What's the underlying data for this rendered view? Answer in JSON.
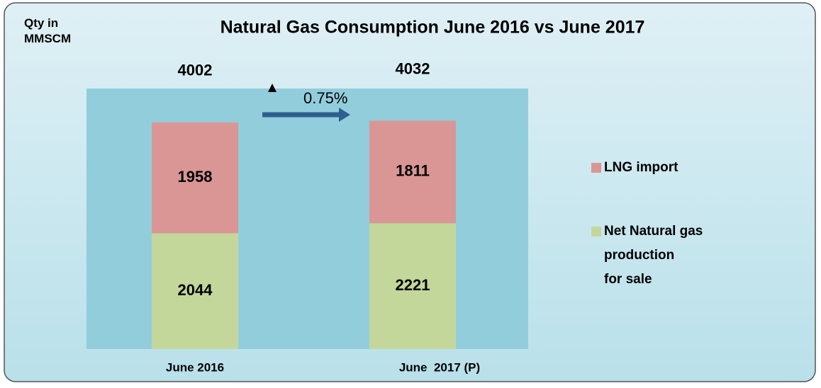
{
  "chart_data": {
    "type": "stacked_bar",
    "title": "Natural Gas Consumption June 2016 vs June 2017",
    "y_axis_label": "Qty in\nMMSCM",
    "categories": [
      "June 2016",
      "June  2017 (P)"
    ],
    "series": [
      {
        "name": "Net Natural gas\nproduction\nfor sale",
        "color": "#c4d79b",
        "values": [
          2044,
          2221
        ]
      },
      {
        "name": "LNG import",
        "color": "#d99694",
        "values": [
          1958,
          1811
        ]
      }
    ],
    "totals": [
      4002,
      4032
    ],
    "annotation": "0.75%",
    "ylim": [
      0,
      4600
    ],
    "legend": "right"
  }
}
